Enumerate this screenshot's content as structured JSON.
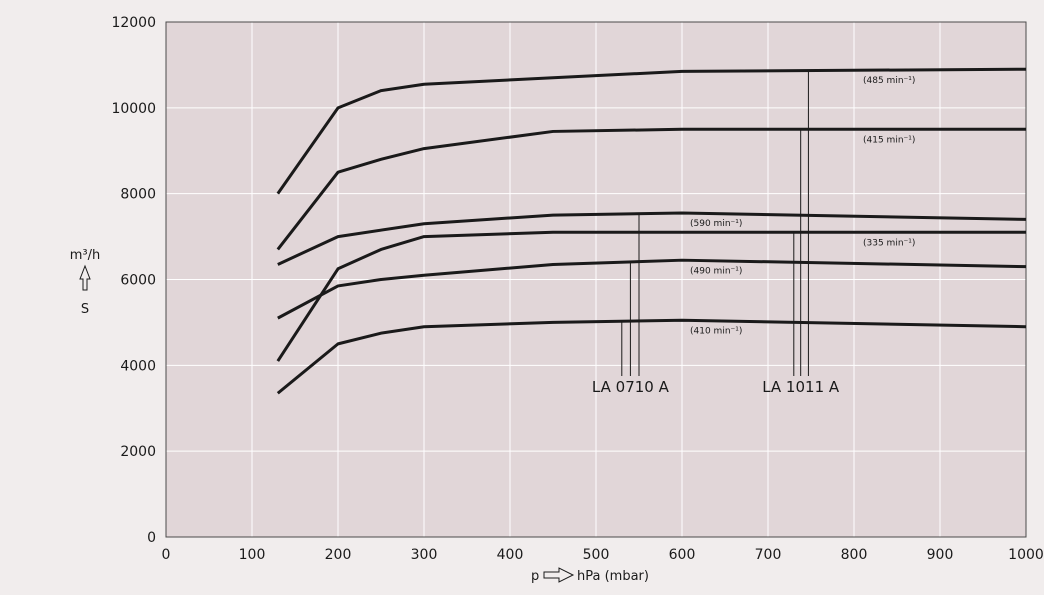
{
  "chart_data": {
    "type": "line",
    "xlim": [
      0,
      1000
    ],
    "ylim": [
      0,
      12000
    ],
    "x_ticks": [
      "0",
      "100",
      "200",
      "300",
      "400",
      "500",
      "600",
      "700",
      "800",
      "900",
      "1000"
    ],
    "y_ticks": [
      "0",
      "2000",
      "4000",
      "6000",
      "8000",
      "10000",
      "12000"
    ],
    "xlabel_p": "p",
    "xlabel_unit": "hPa (mbar)",
    "ylabel_unit": "m³/h",
    "ylabel_symbol": "S",
    "grid": true,
    "colors": {
      "plot_bg": "#e1d6d8",
      "page_bg": "#f1eded",
      "line": "#1a1a1a",
      "grid": "#ffffff"
    },
    "series": [
      {
        "name": "(485 min⁻¹)",
        "x": [
          130,
          200,
          250,
          300,
          450,
          600,
          1000
        ],
        "y": [
          8000,
          10000,
          10400,
          10550,
          10700,
          10850,
          10900
        ]
      },
      {
        "name": "(415 min⁻¹)",
        "x": [
          130,
          200,
          250,
          300,
          450,
          600,
          1000
        ],
        "y": [
          6700,
          8500,
          8800,
          9050,
          9450,
          9500,
          9500
        ]
      },
      {
        "name": "(590 min⁻¹)",
        "x": [
          130,
          200,
          300,
          450,
          600,
          1000
        ],
        "y": [
          6350,
          7000,
          7300,
          7500,
          7550,
          7400
        ]
      },
      {
        "name": "(335 min⁻¹)",
        "x": [
          130,
          200,
          250,
          300,
          450,
          1000
        ],
        "y": [
          4100,
          6250,
          6700,
          7000,
          7100,
          7100
        ]
      },
      {
        "name": "(490 min⁻¹)",
        "x": [
          130,
          200,
          250,
          300,
          450,
          600,
          1000
        ],
        "y": [
          5100,
          5850,
          6000,
          6100,
          6350,
          6450,
          6300
        ]
      },
      {
        "name": "(410 min⁻¹)",
        "x": [
          130,
          200,
          250,
          300,
          450,
          600,
          1000
        ],
        "y": [
          3350,
          4500,
          4750,
          4900,
          5000,
          5050,
          4900
        ]
      }
    ],
    "groups": [
      {
        "label": "LA 0710 A",
        "series": [
          "(410 min⁻¹)",
          "(490 min⁻¹)",
          "(590 min⁻¹)"
        ]
      },
      {
        "label": "LA 1011 A",
        "series": [
          "(335 min⁻¹)",
          "(415 min⁻¹)",
          "(485 min⁻¹)"
        ]
      }
    ]
  }
}
